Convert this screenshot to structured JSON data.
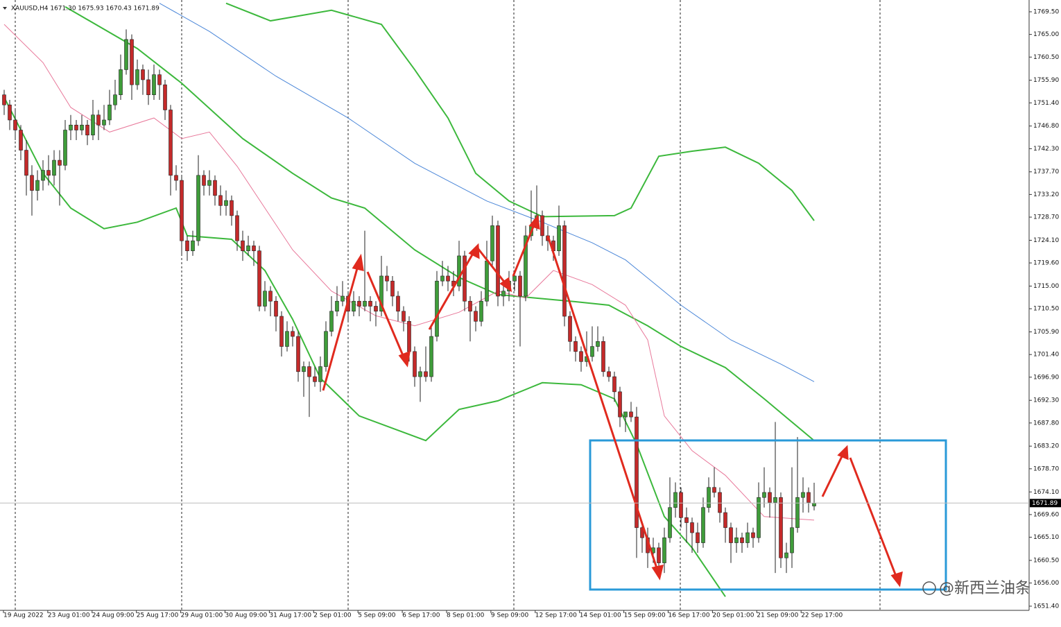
{
  "chart_data": {
    "type": "candlestick",
    "title": "XAUUSD,H4 1671.30 1675.93 1670.43 1671.89",
    "watermark": "@新西兰油条",
    "ylim": [
      1650.57,
      1771.84
    ],
    "yticks": [
      {
        "value": 1769.5,
        "label": "1769.50"
      },
      {
        "value": 1765.0,
        "label": "1765.00"
      },
      {
        "value": 1760.5,
        "label": "1760.50"
      },
      {
        "value": 1755.9,
        "label": "1755.90"
      },
      {
        "value": 1751.4,
        "label": "1751.40"
      },
      {
        "value": 1746.8,
        "label": "1746.80"
      },
      {
        "value": 1742.3,
        "label": "1742.30"
      },
      {
        "value": 1737.7,
        "label": "1737.70"
      },
      {
        "value": 1733.2,
        "label": "1733.20"
      },
      {
        "value": 1728.7,
        "label": "1728.70"
      },
      {
        "value": 1724.1,
        "label": "1724.10"
      },
      {
        "value": 1719.6,
        "label": "1719.60"
      },
      {
        "value": 1715.0,
        "label": "1715.00"
      },
      {
        "value": 1710.5,
        "label": "1710.50"
      },
      {
        "value": 1705.9,
        "label": "1705.90"
      },
      {
        "value": 1701.4,
        "label": "1701.40"
      },
      {
        "value": 1696.9,
        "label": "1696.90"
      },
      {
        "value": 1692.3,
        "label": "1692.30"
      },
      {
        "value": 1687.8,
        "label": "1687.80"
      },
      {
        "value": 1683.2,
        "label": "1683.20"
      },
      {
        "value": 1678.7,
        "label": "1678.70"
      },
      {
        "value": 1674.1,
        "label": "1674.10"
      },
      {
        "value": 1669.6,
        "label": "1669.60"
      },
      {
        "value": 1665.1,
        "label": "1665.10"
      },
      {
        "value": 1660.5,
        "label": "1660.50"
      },
      {
        "value": 1656.0,
        "label": "1656.00"
      },
      {
        "value": 1651.4,
        "label": "1651.40"
      }
    ],
    "current_price": 1671.89,
    "x_labels": [
      "19 Aug 2022",
      "23 Aug 01:00",
      "24 Aug 09:00",
      "25 Aug 17:00",
      "29 Aug 01:00",
      "30 Aug 09:00",
      "31 Aug 17:00",
      "2 Sep 01:00",
      "5 Sep 09:00",
      "6 Sep 17:00",
      "8 Sep 01:00",
      "9 Sep 09:00",
      "12 Sep 17:00",
      "14 Sep 01:00",
      "15 Sep 09:00",
      "16 Sep 17:00",
      "20 Sep 01:00",
      "21 Sep 09:00",
      "22 Sep 17:00"
    ],
    "up_color": "#3f9c3a",
    "down_color": "#c42a2a",
    "candles": [
      [
        1753,
        1754,
        1749,
        1751
      ],
      [
        1751,
        1752,
        1746,
        1748
      ],
      [
        1748,
        1750,
        1744,
        1746
      ],
      [
        1746,
        1747,
        1740,
        1742
      ],
      [
        1742,
        1744,
        1733,
        1737
      ],
      [
        1737,
        1739,
        1729,
        1734
      ],
      [
        1734,
        1738,
        1732,
        1736
      ],
      [
        1736,
        1740,
        1734,
        1738
      ],
      [
        1738,
        1741,
        1735,
        1737
      ],
      [
        1737,
        1742,
        1735,
        1740
      ],
      [
        1740,
        1742,
        1731,
        1739
      ],
      [
        1739,
        1748,
        1738,
        1746
      ],
      [
        1746,
        1749,
        1744,
        1747
      ],
      [
        1747,
        1748,
        1744,
        1746
      ],
      [
        1746,
        1749,
        1745,
        1747
      ],
      [
        1747,
        1748,
        1743,
        1745
      ],
      [
        1745,
        1752,
        1744,
        1749
      ],
      [
        1749,
        1750,
        1744,
        1747
      ],
      [
        1747,
        1751,
        1746,
        1748
      ],
      [
        1748,
        1754,
        1747,
        1751
      ],
      [
        1751,
        1756,
        1750,
        1753
      ],
      [
        1753,
        1761,
        1752,
        1758
      ],
      [
        1758,
        1766,
        1757,
        1764
      ],
      [
        1764,
        1765,
        1752,
        1755
      ],
      [
        1755,
        1760,
        1754,
        1758
      ],
      [
        1758,
        1759,
        1753,
        1756
      ],
      [
        1756,
        1758,
        1751,
        1753
      ],
      [
        1753,
        1759,
        1752,
        1757
      ],
      [
        1757,
        1758,
        1752,
        1755
      ],
      [
        1755,
        1756,
        1748,
        1750
      ],
      [
        1750,
        1751,
        1733,
        1737
      ],
      [
        1737,
        1739,
        1734,
        1736
      ],
      [
        1736,
        1737,
        1721,
        1724
      ],
      [
        1724,
        1725,
        1720,
        1722
      ],
      [
        1722,
        1726,
        1721,
        1724
      ],
      [
        1724,
        1741,
        1723,
        1737
      ],
      [
        1737,
        1738,
        1733,
        1735
      ],
      [
        1735,
        1738,
        1733,
        1736
      ],
      [
        1736,
        1737,
        1731,
        1733
      ],
      [
        1733,
        1735,
        1729,
        1731
      ],
      [
        1731,
        1734,
        1729,
        1732
      ],
      [
        1732,
        1733,
        1727,
        1729
      ],
      [
        1729,
        1730,
        1722,
        1724
      ],
      [
        1724,
        1726,
        1720,
        1722
      ],
      [
        1722,
        1725,
        1721,
        1723
      ],
      [
        1723,
        1724,
        1719,
        1722
      ],
      [
        1722,
        1723,
        1710,
        1711
      ],
      [
        1711,
        1716,
        1710,
        1714
      ],
      [
        1714,
        1715,
        1709,
        1712
      ],
      [
        1712,
        1713,
        1706,
        1709
      ],
      [
        1709,
        1710,
        1701,
        1703
      ],
      [
        1703,
        1708,
        1702,
        1706
      ],
      [
        1706,
        1707,
        1703,
        1705
      ],
      [
        1705,
        1706,
        1696,
        1698
      ],
      [
        1698,
        1700,
        1693,
        1699
      ],
      [
        1699,
        1700,
        1689,
        1697
      ],
      [
        1697,
        1699,
        1695,
        1696
      ],
      [
        1696,
        1701,
        1694,
        1699
      ],
      [
        1699,
        1708,
        1698,
        1706
      ],
      [
        1706,
        1713,
        1705,
        1710
      ],
      [
        1710,
        1715,
        1709,
        1712
      ],
      [
        1712,
        1716,
        1711,
        1713
      ],
      [
        1713,
        1714,
        1708,
        1710
      ],
      [
        1710,
        1714,
        1709,
        1712
      ],
      [
        1712,
        1713,
        1709,
        1711
      ],
      [
        1711,
        1726,
        1710,
        1712
      ],
      [
        1712,
        1713,
        1708,
        1711
      ],
      [
        1711,
        1712,
        1707,
        1710
      ],
      [
        1710,
        1721,
        1709,
        1717
      ],
      [
        1717,
        1719,
        1714,
        1716
      ],
      [
        1716,
        1717,
        1711,
        1713
      ],
      [
        1713,
        1714,
        1708,
        1710
      ],
      [
        1710,
        1711,
        1706,
        1708
      ],
      [
        1708,
        1709,
        1700,
        1702
      ],
      [
        1702,
        1703,
        1695,
        1697
      ],
      [
        1697,
        1699,
        1692,
        1698
      ],
      [
        1698,
        1703,
        1696,
        1697
      ],
      [
        1697,
        1707,
        1696,
        1705
      ],
      [
        1705,
        1718,
        1704,
        1716
      ],
      [
        1716,
        1720,
        1715,
        1717
      ],
      [
        1717,
        1719,
        1714,
        1716
      ],
      [
        1716,
        1718,
        1713,
        1715
      ],
      [
        1715,
        1724,
        1714,
        1721
      ],
      [
        1721,
        1722,
        1710,
        1712
      ],
      [
        1712,
        1713,
        1704,
        1710
      ],
      [
        1710,
        1711,
        1706,
        1708
      ],
      [
        1708,
        1714,
        1707,
        1712
      ],
      [
        1712,
        1724,
        1711,
        1720
      ],
      [
        1720,
        1729,
        1719,
        1727
      ],
      [
        1727,
        1728,
        1711,
        1713
      ],
      [
        1713,
        1715,
        1711,
        1714
      ],
      [
        1714,
        1718,
        1712,
        1716
      ],
      [
        1716,
        1718,
        1714,
        1717
      ],
      [
        1717,
        1718,
        1703,
        1713
      ],
      [
        1713,
        1727,
        1712,
        1725
      ],
      [
        1725,
        1734,
        1724,
        1727
      ],
      [
        1727,
        1735,
        1726,
        1729
      ],
      [
        1729,
        1730,
        1723,
        1725
      ],
      [
        1725,
        1727,
        1722,
        1724
      ],
      [
        1724,
        1725,
        1720,
        1722
      ],
      [
        1722,
        1731,
        1721,
        1727
      ],
      [
        1727,
        1728,
        1707,
        1709
      ],
      [
        1709,
        1710,
        1702,
        1704
      ],
      [
        1704,
        1705,
        1700,
        1702
      ],
      [
        1702,
        1703,
        1698,
        1700
      ],
      [
        1700,
        1706,
        1699,
        1701
      ],
      [
        1701,
        1707,
        1700,
        1703
      ],
      [
        1703,
        1707,
        1702,
        1704
      ],
      [
        1704,
        1705,
        1697,
        1698
      ],
      [
        1698,
        1699,
        1696,
        1697
      ],
      [
        1697,
        1698,
        1692,
        1694
      ],
      [
        1694,
        1695,
        1687,
        1689
      ],
      [
        1689,
        1690,
        1686,
        1690
      ],
      [
        1690,
        1692,
        1688,
        1689
      ],
      [
        1689,
        1691,
        1661,
        1667
      ],
      [
        1667,
        1668,
        1662,
        1665
      ],
      [
        1665,
        1667,
        1659,
        1662
      ],
      [
        1662,
        1665,
        1660,
        1663
      ],
      [
        1663,
        1664,
        1657,
        1660
      ],
      [
        1660,
        1667,
        1658,
        1665
      ],
      [
        1665,
        1677,
        1664,
        1671
      ],
      [
        1671,
        1676,
        1669,
        1674
      ],
      [
        1674,
        1675,
        1667,
        1669
      ],
      [
        1669,
        1671,
        1664,
        1668
      ],
      [
        1668,
        1669,
        1662,
        1666
      ],
      [
        1666,
        1668,
        1662,
        1664
      ],
      [
        1664,
        1673,
        1663,
        1671
      ],
      [
        1671,
        1677,
        1670,
        1675
      ],
      [
        1675,
        1679,
        1673,
        1674
      ],
      [
        1674,
        1675,
        1668,
        1670
      ],
      [
        1670,
        1671,
        1664,
        1667
      ],
      [
        1667,
        1668,
        1660,
        1664
      ],
      [
        1664,
        1667,
        1662,
        1665
      ],
      [
        1665,
        1666,
        1662,
        1664
      ],
      [
        1664,
        1668,
        1663,
        1666
      ],
      [
        1666,
        1667,
        1663,
        1665
      ],
      [
        1665,
        1676,
        1664,
        1673
      ],
      [
        1673,
        1679,
        1671,
        1674
      ],
      [
        1674,
        1675,
        1669,
        1672
      ],
      [
        1672,
        1688,
        1658,
        1673
      ],
      [
        1673,
        1674,
        1659,
        1661
      ],
      [
        1661,
        1664,
        1658,
        1662
      ],
      [
        1662,
        1679,
        1659,
        1667
      ],
      [
        1667,
        1685,
        1666,
        1673
      ],
      [
        1673,
        1677,
        1670,
        1674
      ],
      [
        1674,
        1675,
        1670,
        1672
      ],
      [
        1671.3,
        1675.93,
        1670.43,
        1671.89
      ]
    ],
    "indicators": [
      {
        "color": "#3cb83c",
        "x": [
          40,
          48,
          59,
          68,
          74,
          80,
          85,
          91,
          97,
          110,
          113,
          118,
          124,
          130,
          136,
          142,
          146
        ],
        "values": [
          1771.2,
          1767.7,
          1769.8,
          1767,
          1758,
          1748.4,
          1737.4,
          1731.9,
          1728.8,
          1729,
          1730.5,
          1740.8,
          1741.8,
          1742.6,
          1739.4,
          1734,
          1728
        ]
      },
      {
        "color": "#3cb83c",
        "x": [
          11,
          24,
          32,
          43,
          52,
          59,
          65,
          74,
          82,
          89,
          96,
          103,
          109,
          116,
          122,
          130,
          137,
          146
        ],
        "values": [
          1770.5,
          1762.2,
          1755.3,
          1744.3,
          1737.4,
          1732.5,
          1730.5,
          1722.2,
          1716.7,
          1713.3,
          1712.6,
          1711.9,
          1711.2,
          1707.1,
          1703,
          1698.8,
          1692.6,
          1684.3
        ]
      },
      {
        "color": "#3cb83c",
        "x": [
          0,
          7,
          12,
          18,
          24,
          31,
          33,
          41,
          47,
          52,
          57,
          64,
          76,
          82,
          89,
          97,
          104,
          110,
          114,
          119,
          124,
          130
        ],
        "values": [
          1752.5,
          1737.4,
          1730.5,
          1726.4,
          1727.7,
          1730.5,
          1725,
          1724.3,
          1718.1,
          1708.4,
          1696.7,
          1689.2,
          1684.3,
          1690.5,
          1692.2,
          1695.8,
          1695.4,
          1692.6,
          1683.6,
          1669.2,
          1663,
          1653.3
        ]
      },
      {
        "color": "#e8789a",
        "x": [
          0,
          7,
          12,
          19,
          27,
          32,
          37,
          42,
          47,
          52,
          59,
          67,
          74,
          82,
          89,
          94,
          99,
          106,
          112,
          116,
          119,
          124,
          130,
          137,
          146
        ],
        "values": [
          1767,
          1759.4,
          1750.5,
          1745.6,
          1748.4,
          1744.3,
          1745.6,
          1738.8,
          1730.5,
          1722.2,
          1714,
          1709.1,
          1707.1,
          1709.8,
          1714,
          1712.6,
          1718.1,
          1715.3,
          1711.2,
          1704.3,
          1689.2,
          1682.3,
          1677.4,
          1669.2,
          1668.5
        ]
      },
      {
        "color": "#4a86d8",
        "x": [
          28,
          37,
          49,
          62,
          74,
          87,
          97,
          106,
          112,
          122,
          131,
          140,
          146
        ],
        "values": [
          1771.2,
          1765.6,
          1756.7,
          1748.4,
          1739.4,
          1731.9,
          1727.7,
          1723.6,
          1720.2,
          1711.2,
          1704.3,
          1699.5,
          1696
        ]
      }
    ]
  }
}
